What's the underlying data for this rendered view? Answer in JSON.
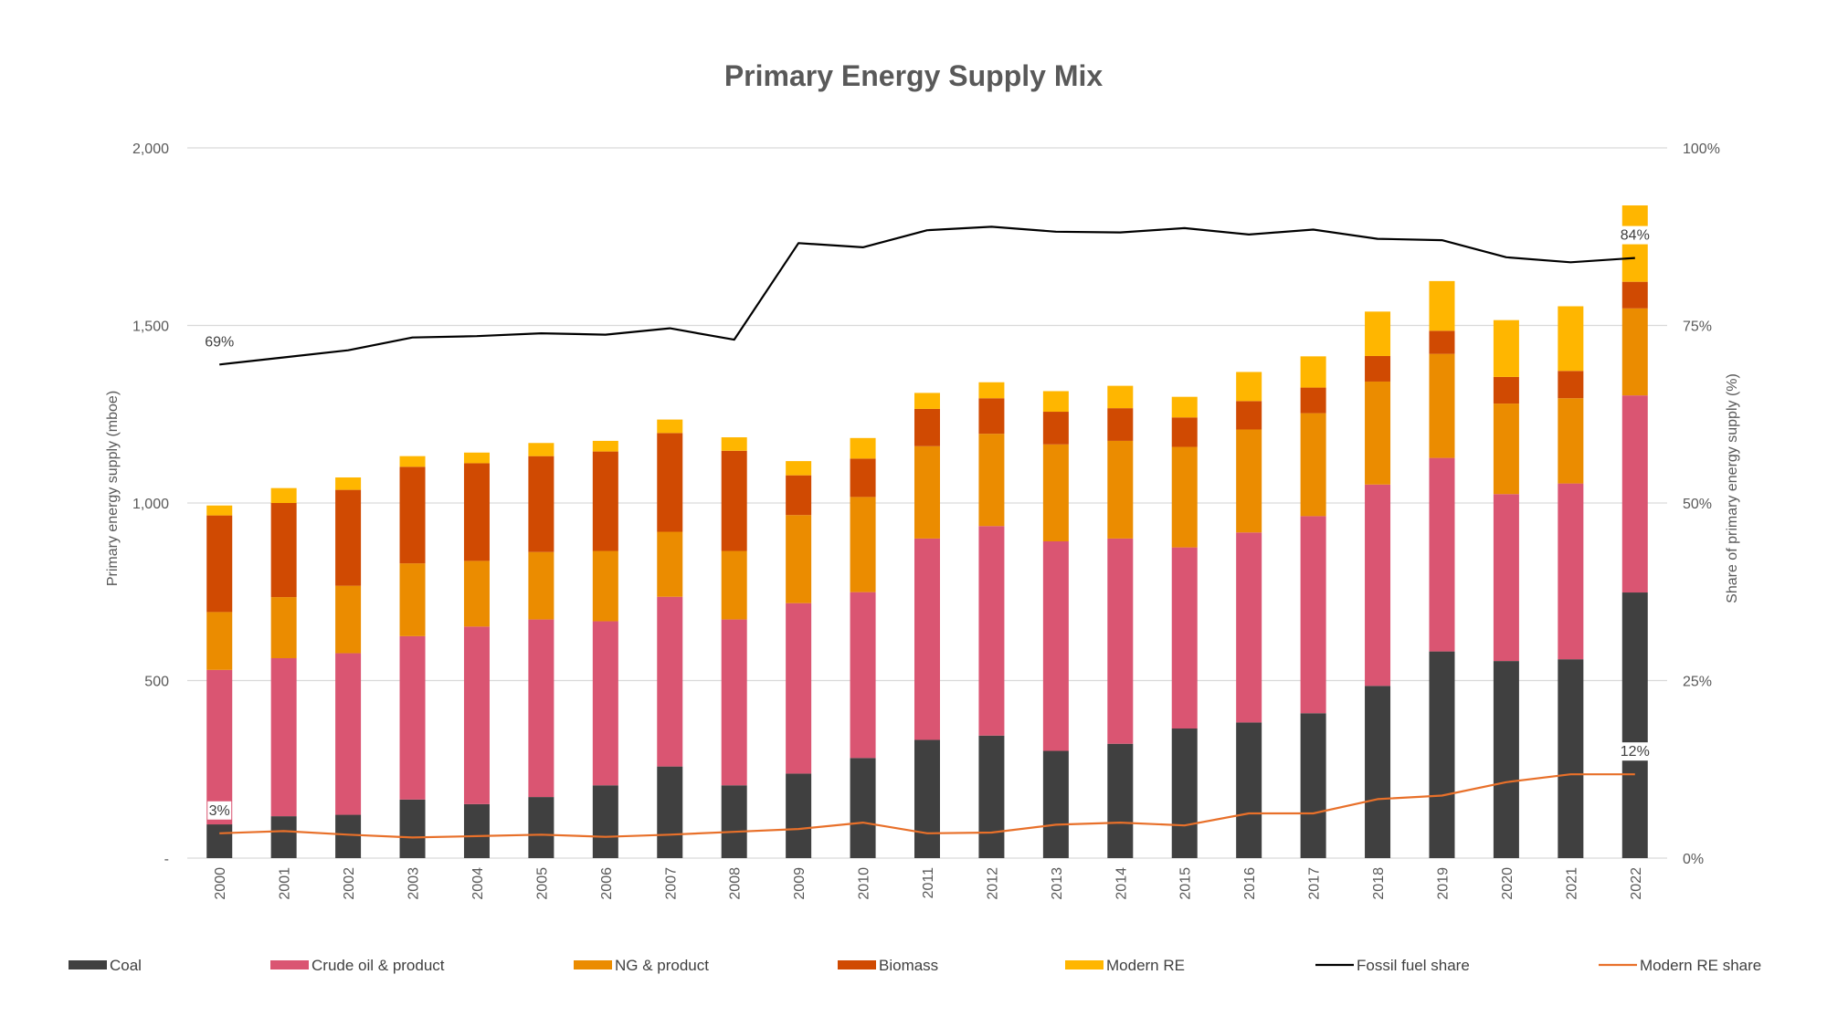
{
  "chart_data": {
    "type": "bar",
    "stacked": true,
    "title": "Primary Energy Supply Mix",
    "ylabel": "Primary energy supply (mboe)",
    "y2label": "Share of primary energy supply (%)",
    "ylim": [
      0,
      2000
    ],
    "y2lim": [
      0,
      100
    ],
    "yticks": [
      "-",
      "500",
      "1,000",
      "1,500",
      "2,000"
    ],
    "y2ticks": [
      "0%",
      "25%",
      "50%",
      "75%",
      "100%"
    ],
    "grid": true,
    "legend_position": "bottom",
    "categories": [
      "2000",
      "2001",
      "2002",
      "2003",
      "2004",
      "2005",
      "2006",
      "2007",
      "2008",
      "2009",
      "2010",
      "2011",
      "2012",
      "2013",
      "2014",
      "2015",
      "2016",
      "2017",
      "2018",
      "2019",
      "2020",
      "2021",
      "2022"
    ],
    "series": [
      {
        "name": "Coal",
        "kind": "bar",
        "color": "#404040",
        "values": [
          95,
          118,
          122,
          165,
          152,
          172,
          205,
          258,
          205,
          238,
          282,
          333,
          345,
          302,
          322,
          365,
          382,
          408,
          485,
          582,
          555,
          560,
          748
        ]
      },
      {
        "name": "Crude oil & product",
        "kind": "bar",
        "color": "#DA5572",
        "values": [
          435,
          445,
          455,
          460,
          500,
          500,
          462,
          478,
          467,
          480,
          467,
          567,
          590,
          590,
          578,
          510,
          535,
          555,
          567,
          545,
          470,
          495,
          555
        ]
      },
      {
        "name": "NG & product",
        "kind": "bar",
        "color": "#EB8C00",
        "values": [
          163,
          172,
          190,
          205,
          185,
          190,
          198,
          183,
          193,
          248,
          268,
          260,
          260,
          273,
          275,
          283,
          290,
          290,
          290,
          293,
          255,
          240,
          245
        ]
      },
      {
        "name": "Biomass",
        "kind": "bar",
        "color": "#D04A02",
        "values": [
          272,
          265,
          270,
          272,
          275,
          270,
          280,
          278,
          282,
          112,
          108,
          105,
          100,
          92,
          92,
          83,
          80,
          72,
          72,
          65,
          75,
          77,
          75
        ]
      },
      {
        "name": "Modern RE",
        "kind": "bar",
        "color": "#FFB600",
        "values": [
          28,
          42,
          35,
          30,
          30,
          37,
          30,
          38,
          38,
          40,
          58,
          45,
          45,
          58,
          63,
          58,
          82,
          88,
          125,
          140,
          160,
          182,
          215
        ]
      },
      {
        "name": "Fossil fuel share",
        "kind": "line",
        "axis": "secondary",
        "color": "#000000",
        "values": [
          69.5,
          70.5,
          71.5,
          73.3,
          73.5,
          73.9,
          73.7,
          74.6,
          73.0,
          86.6,
          86.0,
          88.4,
          88.9,
          88.2,
          88.1,
          88.7,
          87.8,
          88.5,
          87.2,
          87.0,
          84.6,
          83.9,
          84.5
        ]
      },
      {
        "name": "Modern RE share",
        "kind": "line",
        "axis": "secondary",
        "color": "#E8702A",
        "values": [
          3.5,
          3.8,
          3.3,
          2.9,
          3.1,
          3.3,
          3.0,
          3.3,
          3.7,
          4.1,
          5.0,
          3.5,
          3.6,
          4.7,
          5.0,
          4.6,
          6.3,
          6.3,
          8.3,
          8.8,
          10.7,
          11.8,
          11.8
        ]
      }
    ],
    "annotations": [
      {
        "series": "Fossil fuel share",
        "category": "2000",
        "text": "69%"
      },
      {
        "series": "Fossil fuel share",
        "category": "2022",
        "text": "84%"
      },
      {
        "series": "Modern RE share",
        "category": "2000",
        "text": "3%"
      },
      {
        "series": "Modern RE share",
        "category": "2022",
        "text": "12%"
      }
    ]
  }
}
